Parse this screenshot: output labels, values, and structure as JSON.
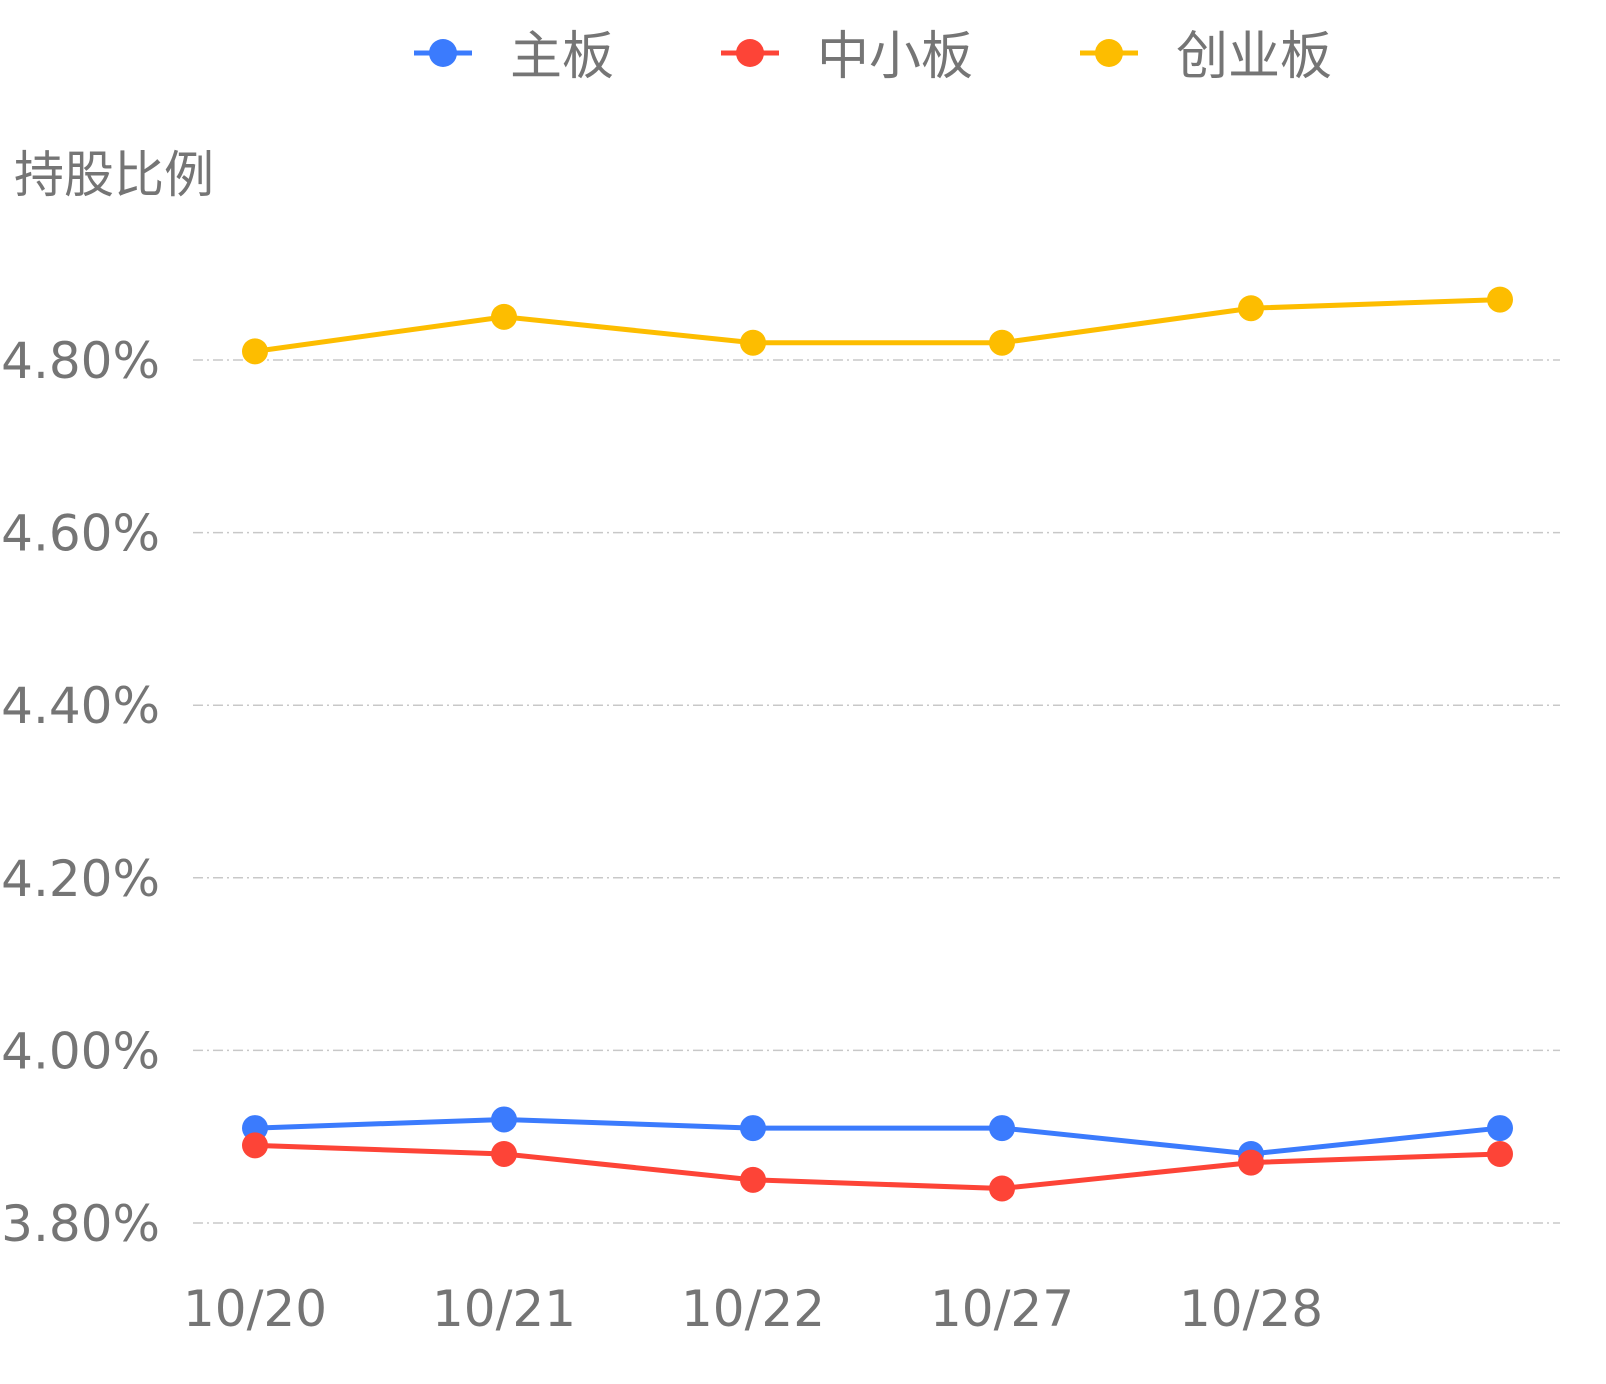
{
  "chart_data": {
    "type": "line",
    "title": "",
    "ylabel": "持股比例",
    "xlabel": "",
    "categories": [
      "10/20",
      "10/21",
      "10/22",
      "10/27",
      "10/28",
      ""
    ],
    "x_tick_labels": [
      "10/20",
      "10/21",
      "10/22",
      "10/27",
      "10/28"
    ],
    "y_ticks": [
      3.8,
      4.0,
      4.2,
      4.4,
      4.6,
      4.8
    ],
    "y_tick_labels": [
      "3.80%",
      "4.00%",
      "4.20%",
      "4.40%",
      "4.60%",
      "4.80%"
    ],
    "ylim": [
      3.8,
      4.975
    ],
    "y_unit": "%",
    "grid": true,
    "legend_position": "top",
    "series": [
      {
        "name": "主板",
        "color": "#3b7bfd",
        "values": [
          3.91,
          3.92,
          3.91,
          3.91,
          3.88,
          3.91
        ]
      },
      {
        "name": "中小板",
        "color": "#fd4437",
        "values": [
          3.89,
          3.88,
          3.85,
          3.84,
          3.87,
          3.88
        ]
      },
      {
        "name": "创业板",
        "color": "#fdbd00",
        "values": [
          4.81,
          4.85,
          4.82,
          4.82,
          4.86,
          4.87
        ]
      }
    ]
  },
  "colors": {
    "text": "#757575",
    "grid": "#c8c8c8"
  }
}
